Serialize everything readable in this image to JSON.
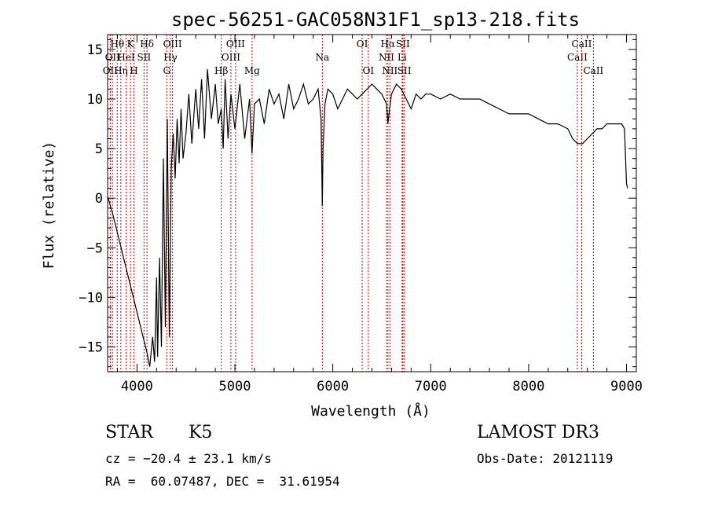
{
  "chart_data": {
    "type": "line",
    "title": "spec-56251-GAC058N31F1_sp13-218.fits",
    "xlabel": "Wavelength (Å)",
    "ylabel": "Flux (relative)",
    "xlim": [
      3700,
      9100
    ],
    "ylim": [
      -17.5,
      16.5
    ],
    "xticks": [
      4000,
      5000,
      6000,
      7000,
      8000,
      9000
    ],
    "yticks": [
      -15,
      -10,
      -5,
      0,
      5,
      10,
      15
    ],
    "x_tick_labels": [
      "4000",
      "5000",
      "6000",
      "7000",
      "8000",
      "9000"
    ],
    "y_tick_labels": [
      "−15",
      "−10",
      "−5",
      "0",
      "5",
      "10",
      "15"
    ],
    "grid": false,
    "line_color": "#000000",
    "marker_color": "#cc0000",
    "series": [
      {
        "x": [
          3700,
          3750,
          3800,
          3850,
          3900,
          3950,
          4000,
          4050,
          4100,
          4130,
          4160,
          4180,
          4200,
          4210,
          4230,
          4250,
          4270,
          4290,
          4310,
          4330,
          4350,
          4370,
          4390,
          4410,
          4430,
          4450,
          4470,
          4500,
          4530,
          4560,
          4600,
          4630,
          4660,
          4690,
          4720,
          4760,
          4800,
          4830,
          4861,
          4880,
          4900,
          4930,
          4960,
          5000,
          5050,
          5100,
          5150,
          5175,
          5200,
          5250,
          5300,
          5350,
          5400,
          5450,
          5500,
          5550,
          5600,
          5650,
          5700,
          5750,
          5800,
          5850,
          5880,
          5893,
          5900,
          5920,
          5950,
          6000,
          6050,
          6100,
          6150,
          6200,
          6250,
          6300,
          6350,
          6400,
          6450,
          6500,
          6550,
          6563,
          6580,
          6600,
          6650,
          6700,
          6750,
          6800,
          6850,
          6900,
          6950,
          7000,
          7100,
          7200,
          7300,
          7400,
          7500,
          7600,
          7700,
          7800,
          7900,
          8000,
          8100,
          8200,
          8300,
          8400,
          8450,
          8500,
          8550,
          8600,
          8650,
          8700,
          8750,
          8800,
          8850,
          8900,
          8950,
          8980,
          9000,
          9010
        ],
        "y": [
          0.2,
          -1.5,
          -3.5,
          -5.5,
          -7.5,
          -9.5,
          -11.5,
          -13.5,
          -15.5,
          -17.0,
          -14.0,
          -16.5,
          -8.0,
          -16.0,
          -6.0,
          -15.0,
          4.0,
          -13.0,
          8.0,
          -14.0,
          3.0,
          6.5,
          2.0,
          8.0,
          3.5,
          9.0,
          4.0,
          6.5,
          10.5,
          5.5,
          11.0,
          7.0,
          12.0,
          6.0,
          13.0,
          8.0,
          11.5,
          7.5,
          9.0,
          5.0,
          12.0,
          6.0,
          10.5,
          7.0,
          11.5,
          6.0,
          10.0,
          4.5,
          9.5,
          10.0,
          7.5,
          11.0,
          9.5,
          10.5,
          8.0,
          11.5,
          9.0,
          10.0,
          11.5,
          9.5,
          10.0,
          11.0,
          8.0,
          -0.8,
          5.0,
          9.5,
          11.0,
          10.5,
          9.0,
          10.0,
          11.0,
          10.5,
          10.0,
          10.5,
          11.0,
          11.5,
          11.0,
          10.5,
          9.5,
          7.5,
          9.0,
          10.5,
          11.5,
          11.0,
          10.0,
          9.0,
          10.5,
          10.0,
          10.5,
          10.5,
          10.0,
          10.5,
          10.0,
          10.0,
          10.0,
          9.5,
          9.0,
          8.5,
          8.5,
          8.5,
          8.0,
          7.5,
          7.5,
          7.0,
          6.0,
          5.5,
          5.5,
          6.0,
          6.5,
          7.0,
          7.0,
          7.5,
          7.5,
          7.5,
          7.5,
          7.0,
          1.5,
          1.0
        ]
      }
    ],
    "line_markers": [
      {
        "x": 3727,
        "label": "OII",
        "row": 2
      },
      {
        "x": 3750,
        "label": "OII",
        "row": 1
      },
      {
        "x": 3798,
        "label": "Hθ",
        "row": 0
      },
      {
        "x": 3835,
        "label": "Hη",
        "row": 2
      },
      {
        "x": 3889,
        "label": "HeI",
        "row": 1
      },
      {
        "x": 3934,
        "label": "K",
        "row": 0
      },
      {
        "x": 3969,
        "label": "H",
        "row": 2
      },
      {
        "x": 4072,
        "label": "SII",
        "row": 1
      },
      {
        "x": 4102,
        "label": "Hδ",
        "row": 0
      },
      {
        "x": 4304,
        "label": "G",
        "row": 2
      },
      {
        "x": 4341,
        "label": "Hγ",
        "row": 1
      },
      {
        "x": 4363,
        "label": "OIII",
        "row": 0
      },
      {
        "x": 4861,
        "label": "Hβ",
        "row": 2
      },
      {
        "x": 4959,
        "label": "OIII",
        "row": 1
      },
      {
        "x": 5007,
        "label": "OIII",
        "row": 0
      },
      {
        "x": 5175,
        "label": "Mg",
        "row": 2
      },
      {
        "x": 5893,
        "label": "Na",
        "row": 1
      },
      {
        "x": 6300,
        "label": "OI",
        "row": 0
      },
      {
        "x": 6363,
        "label": "OI",
        "row": 2
      },
      {
        "x": 6548,
        "label": "NII",
        "row": 1
      },
      {
        "x": 6563,
        "label": "Hα",
        "row": 0
      },
      {
        "x": 6583,
        "label": "NII",
        "row": 2
      },
      {
        "x": 6716,
        "label": "SII",
        "row": 0
      },
      {
        "x": 6731,
        "label": "SII",
        "row": 2
      },
      {
        "x": 6708,
        "label": "Li",
        "row": 1
      },
      {
        "x": 8498,
        "label": "CaII",
        "row": 1
      },
      {
        "x": 8542,
        "label": "CaII",
        "row": 0
      },
      {
        "x": 8662,
        "label": "CaII",
        "row": 2
      }
    ]
  },
  "info": {
    "class": "STAR",
    "subclass": "K5",
    "survey": "LAMOST DR3",
    "redshift": "cz = −20.4 ± 23.1 km/s",
    "obsdate": "Obs-Date: 20121119",
    "coords": "RA =  60.07487, DEC =  31.61954"
  }
}
